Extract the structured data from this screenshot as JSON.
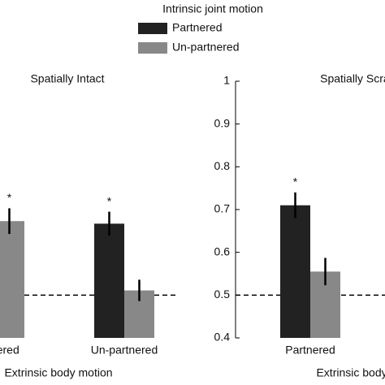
{
  "legend_title": "Intrinsic joint motion",
  "chart_data": [
    {
      "type": "bar",
      "title": "Spatially Intact",
      "x_label": "Extrinsic body motion",
      "categories": [
        "Partnered",
        "Un-partnered"
      ],
      "series": [
        {
          "name": "Partnered",
          "color": "#222222",
          "values": [
            null,
            0.667
          ],
          "errors": [
            null,
            0.028
          ],
          "markers": [
            null,
            "*"
          ]
        },
        {
          "name": "Un-partnered",
          "color": "#888888",
          "values": [
            0.673,
            0.511
          ],
          "errors": [
            0.03,
            0.025
          ],
          "markers": [
            "*",
            null
          ]
        }
      ],
      "ylim": [
        0.4,
        1
      ],
      "reference_line": 0.5
    },
    {
      "type": "bar",
      "title": "Spatially Scrambled",
      "x_label": "Extrinsic body motion",
      "categories": [
        "Partnered"
      ],
      "series": [
        {
          "color": "#222222",
          "values": [
            0.71
          ],
          "errors": [
            0.03
          ],
          "markers": [
            "*"
          ]
        },
        {
          "color": "#888888",
          "values": [
            0.555
          ],
          "errors": [
            0.032
          ],
          "markers": [
            null
          ]
        }
      ],
      "ylim": [
        0.4,
        1
      ],
      "yticks": [
        0.4,
        0.5,
        0.6,
        0.7,
        0.8,
        0.9,
        1
      ],
      "reference_line": 0.5
    }
  ]
}
